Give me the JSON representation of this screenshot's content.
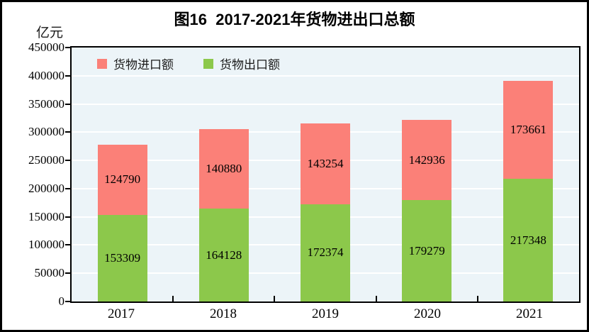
{
  "title": "图16  2017-2021年货物进出口总额",
  "unit_label": "亿元",
  "legend": {
    "items": [
      {
        "label": "货物进口额",
        "color": "#fb8078"
      },
      {
        "label": "货物出口额",
        "color": "#8cc84b"
      }
    ]
  },
  "colors": {
    "imports": "#fb8078",
    "exports": "#8cc84b",
    "plot_background": "#ecf4f8",
    "gridline": "#ffffff",
    "axis": "#000000",
    "text": "#000000"
  },
  "chart_data": {
    "type": "bar",
    "stacked": true,
    "title": "图16  2017-2021年货物进出口总额",
    "xlabel": "",
    "ylabel": "亿元",
    "categories": [
      "2017",
      "2018",
      "2019",
      "2020",
      "2021"
    ],
    "series": [
      {
        "name": "货物出口额",
        "color": "#8cc84b",
        "values": [
          153309,
          164128,
          172374,
          179279,
          217348
        ]
      },
      {
        "name": "货物进口额",
        "color": "#fb8078",
        "values": [
          124790,
          140880,
          143254,
          142936,
          173661
        ]
      }
    ],
    "ylim": [
      0,
      450000
    ],
    "ytick_step": 50000,
    "yticks": [
      0,
      50000,
      100000,
      150000,
      200000,
      250000,
      300000,
      350000,
      400000,
      450000
    ],
    "grid": true,
    "legend_position": "top-left-inside",
    "data_labels": true
  }
}
